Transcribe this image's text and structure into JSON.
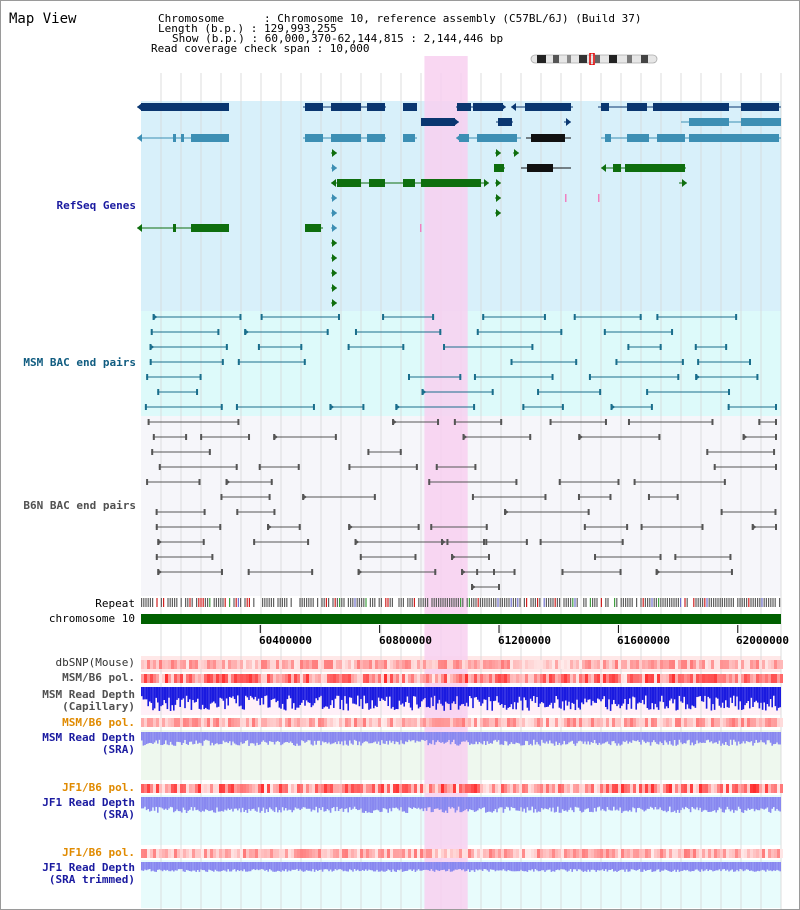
{
  "view_title": "Map View",
  "header": {
    "chromosome_line": "Chromosome      : Chromosome 10, reference assembly (C57BL/6J) (Build 37)",
    "length_line": "Length (b.p.) : 129,993,255",
    "show_line": "Show (b.p.) : 60,000,370-62,144,815 : 2,144,446 bp",
    "coverage_line": "Read coverage check span : 10,000"
  },
  "tracks": {
    "refseq": "RefSeq Genes",
    "msm_bac": "MSM BAC end pairs",
    "b6n_bac": "B6N BAC end pairs",
    "repeat": "Repeat",
    "chromosome": "chromosome 10",
    "dbsnp": "dbSNP(Mouse)",
    "msm_b6_pol_1": "MSM/B6 pol.",
    "msm_read_depth_cap_1": "MSM Read Depth",
    "msm_read_depth_cap_2": "(Capillary)",
    "msm_b6_pol_2": "MSM/B6 pol.",
    "msm_read_depth_sra_1": "MSM Read Depth",
    "msm_read_depth_sra_2": "(SRA)",
    "jf1_b6_pol_1": "JF1/B6 pol.",
    "jf1_read_depth_sra_1": "JF1 Read Depth",
    "jf1_read_depth_sra_2": "(SRA)",
    "jf1_b6_pol_2": "JF1/B6 pol.",
    "jf1_read_depth_trim_1": "JF1 Read Depth",
    "jf1_read_depth_trim_2": "(SRA trimmed)"
  },
  "axis_ticks": [
    "60400000",
    "60800000",
    "61200000",
    "61600000",
    "62000000"
  ],
  "highlight_region_bp": [
    60950000,
    61095000
  ],
  "view_range_bp": [
    60000370,
    62144815
  ],
  "colors": {
    "refseq_bg": "#d8f0fa",
    "msm_bg": "#ddfafa",
    "b6n_bg": "#f6f6fa",
    "highlight": "#f8d0f0",
    "gene_dark": "#0a3670",
    "gene_mid": "#3d8fb4",
    "gene_green": "#0e6e0e",
    "msm_pair": "#1a6e8c",
    "b6n_pair": "#555555",
    "depth_cap": "#1a1ae0",
    "depth_sra": "#8888f0"
  }
}
